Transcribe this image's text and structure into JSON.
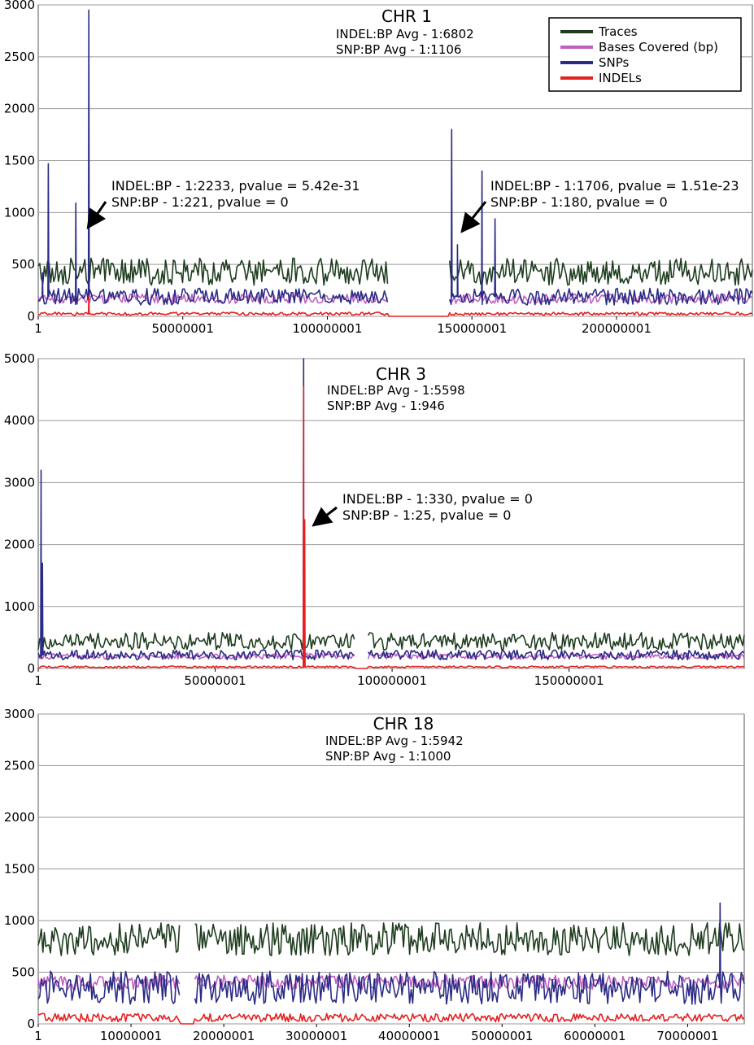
{
  "colors": {
    "traces": "#1f3d1f",
    "bases": "#c060c0",
    "snps": "#2b2b85",
    "indels": "#e52020",
    "grid": "#9a9a9a",
    "frame": "#555555"
  },
  "legend": {
    "placement": "top-right of first panel",
    "items": [
      {
        "label": "Traces",
        "key": "traces"
      },
      {
        "label": "Bases Covered (bp)",
        "key": "bases"
      },
      {
        "label": "SNPs",
        "key": "snps"
      },
      {
        "label": "INDELs",
        "key": "indels"
      }
    ]
  },
  "chart_data": [
    {
      "type": "line",
      "title": "CHR 1",
      "avg_lines": [
        "INDEL:BP Avg - 1:6802",
        "SNP:BP Avg - 1:1106"
      ],
      "ylim": [
        0,
        3000
      ],
      "yticks": [
        0,
        500,
        1000,
        1500,
        2000,
        2500,
        3000
      ],
      "ytick_labels": [
        "0",
        "500",
        "1000",
        "1500",
        "2000",
        "2500",
        "3000"
      ],
      "xlim": [
        1,
        247000000
      ],
      "xticks": [
        1,
        50000001,
        100000001,
        150000001,
        200000001
      ],
      "xtick_labels": [
        "1",
        "50000001",
        "100000001",
        "150000001",
        "200000001"
      ],
      "gaps": [
        [
          121000000,
          142000000
        ]
      ],
      "profile": {
        "traces": 430,
        "traces_var": 130,
        "snps": 190,
        "snps_var": 80,
        "bases": 170,
        "bases_var": 45,
        "indels": 25,
        "indels_var": 15
      },
      "spikes": [
        {
          "x": 1500000,
          "series": "snps",
          "value": 420
        },
        {
          "x": 3500000,
          "series": "snps",
          "value": 1470
        },
        {
          "x": 13000000,
          "series": "snps",
          "value": 1090
        },
        {
          "x": 17500000,
          "series": "snps",
          "value": 2950
        },
        {
          "x": 17500000,
          "series": "indels",
          "value": 200
        },
        {
          "x": 143000000,
          "series": "snps",
          "value": 1800
        },
        {
          "x": 145000000,
          "series": "snps",
          "value": 690
        },
        {
          "x": 153500000,
          "series": "snps",
          "value": 1400
        },
        {
          "x": 158000000,
          "series": "snps",
          "value": 940
        }
      ],
      "annotations": [
        {
          "lines": [
            "INDEL:BP - 1:2233, pvalue = 5.42e-31",
            "SNP:BP - 1:221, pvalue = 0"
          ],
          "x": 17500000,
          "y": 850
        },
        {
          "lines": [
            "INDEL:BP - 1:1706, pvalue = 1.51e-23",
            "SNP:BP - 1:180, pvalue = 0"
          ],
          "x": 145000000,
          "y": 850
        }
      ]
    },
    {
      "type": "line",
      "title": "CHR 3",
      "avg_lines": [
        "INDEL:BP Avg - 1:5598",
        "SNP:BP Avg - 1:946"
      ],
      "ylim": [
        0,
        5000
      ],
      "yticks": [
        0,
        1000,
        2000,
        3000,
        4000,
        5000
      ],
      "ytick_labels": [
        "0",
        "1000",
        "2000",
        "3000",
        "4000",
        "5000"
      ],
      "xlim": [
        1,
        199500000
      ],
      "xticks": [
        1,
        50000001,
        100000001,
        150000001
      ],
      "xtick_labels": [
        "1",
        "50000001",
        "100000001",
        "150000001"
      ],
      "gaps": [
        [
          89500000,
          93000000
        ]
      ],
      "profile": {
        "traces": 440,
        "traces_var": 140,
        "snps": 220,
        "snps_var": 80,
        "bases": 200,
        "bases_var": 50,
        "indels": 25,
        "indels_var": 15
      },
      "spikes": [
        {
          "x": 800000,
          "series": "snps",
          "value": 3200
        },
        {
          "x": 1200000,
          "series": "snps",
          "value": 1700
        },
        {
          "x": 75000000,
          "series": "snps",
          "value": 5000
        },
        {
          "x": 75000000,
          "series": "indels",
          "value": 4550
        },
        {
          "x": 75300000,
          "series": "indels",
          "value": 2400
        }
      ],
      "annotations": [
        {
          "lines": [
            "INDEL:BP - 1:330, pvalue = 0",
            "SNP:BP - 1:25, pvalue = 0"
          ],
          "x": 77000000,
          "y": 2300
        }
      ]
    },
    {
      "type": "line",
      "title": "CHR 18",
      "avg_lines": [
        "INDEL:BP Avg - 1:5942",
        "SNP:BP Avg - 1:1000"
      ],
      "ylim": [
        0,
        3000
      ],
      "yticks": [
        0,
        500,
        1000,
        1500,
        2000,
        2500,
        3000
      ],
      "ytick_labels": [
        "0",
        "500",
        "1000",
        "1500",
        "2000",
        "2500",
        "3000"
      ],
      "xlim": [
        1,
        76100000
      ],
      "xticks": [
        1,
        10000001,
        20000001,
        30000001,
        40000001,
        50000001,
        60000001,
        70000001
      ],
      "xtick_labels": [
        "1",
        "10000001",
        "20000001",
        "30000001",
        "40000001",
        "50000001",
        "60000001",
        "70000001"
      ],
      "gaps": [
        [
          15300000,
          16800000
        ]
      ],
      "profile": {
        "traces": 820,
        "traces_var": 160,
        "snps": 350,
        "snps_var": 160,
        "bases": 400,
        "bases_var": 70,
        "indels": 60,
        "indels_var": 40
      },
      "spikes": [
        {
          "x": 73500000,
          "series": "snps",
          "value": 1170
        }
      ],
      "annotations": []
    }
  ]
}
